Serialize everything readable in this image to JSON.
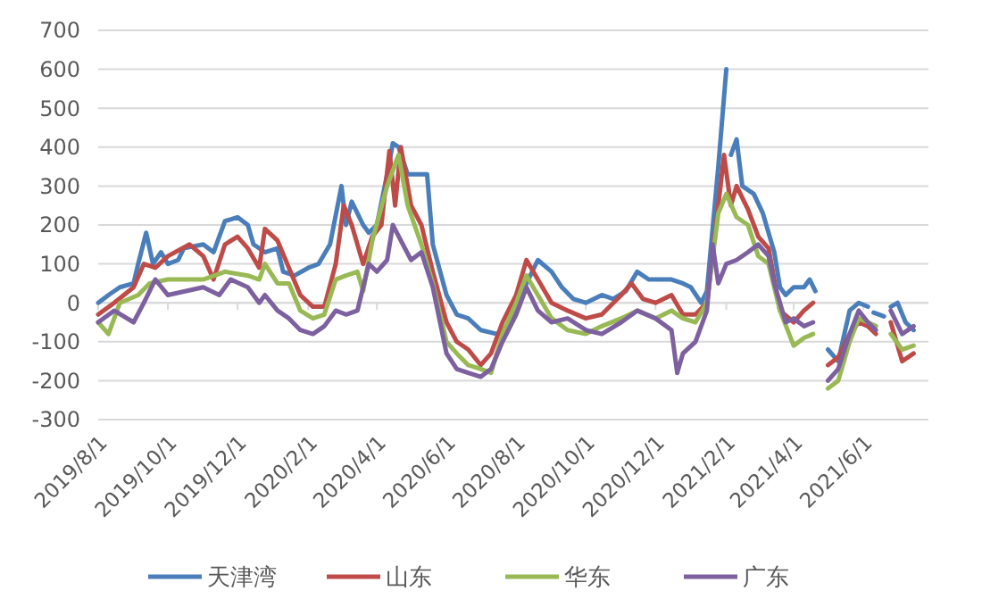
{
  "chart_data": {
    "type": "line",
    "xlim": [
      "2019-08-01",
      "2021-07-28"
    ],
    "ylim": [
      -300,
      700
    ],
    "yticks": [
      -300,
      -200,
      -100,
      0,
      100,
      200,
      300,
      400,
      500,
      600,
      700
    ],
    "xticks": [
      {
        "value": "2019-08-01",
        "label": "2019/8/1"
      },
      {
        "value": "2019-10-01",
        "label": "2019/10/1"
      },
      {
        "value": "2019-12-01",
        "label": "2019/12/1"
      },
      {
        "value": "2020-02-01",
        "label": "2020/2/1"
      },
      {
        "value": "2020-04-01",
        "label": "2020/4/1"
      },
      {
        "value": "2020-06-01",
        "label": "2020/6/1"
      },
      {
        "value": "2020-08-01",
        "label": "2020/8/1"
      },
      {
        "value": "2020-10-01",
        "label": "2020/10/1"
      },
      {
        "value": "2020-12-01",
        "label": "2020/12/1"
      },
      {
        "value": "2021-02-01",
        "label": "2021/2/1"
      },
      {
        "value": "2021-04-01",
        "label": "2021/4/1"
      },
      {
        "value": "2021-06-01",
        "label": "2021/6/1"
      }
    ],
    "grid": "y",
    "legend": "bottom",
    "marker": "none",
    "line_style": "solid",
    "series": [
      {
        "name": "天津湾",
        "color": "#4a7ebb",
        "x": [
          "2019-08-01",
          "2019-08-10",
          "2019-08-20",
          "2019-09-01",
          "2019-09-05",
          "2019-09-12",
          "2019-09-18",
          "2019-09-25",
          "2019-10-01",
          "2019-10-10",
          "2019-10-15",
          "2019-11-01",
          "2019-11-10",
          "2019-11-20",
          "2019-12-01",
          "2019-12-10",
          "2019-12-15",
          "2019-12-25",
          "2020-01-05",
          "2020-01-10",
          "2020-01-20",
          "2020-02-01",
          "2020-02-10",
          "2020-02-20",
          "2020-03-01",
          "2020-03-05",
          "2020-03-10",
          "2020-03-20",
          "2020-03-25",
          "2020-04-01",
          "2020-04-10",
          "2020-04-15",
          "2020-04-20",
          "2020-04-28",
          "2020-05-05",
          "2020-05-15",
          "2020-05-20",
          "2020-06-01",
          "2020-06-10",
          "2020-06-20",
          "2020-07-01",
          "2020-07-15",
          "2020-07-25",
          "2020-08-01",
          "2020-08-10",
          "2020-08-20",
          "2020-09-01",
          "2020-09-10",
          "2020-09-20",
          "2020-10-01",
          "2020-10-15",
          "2020-10-25",
          "2020-11-05",
          "2020-11-15",
          "2020-11-25",
          "2020-12-05",
          "2020-12-15",
          "2020-12-25",
          "2021-01-01",
          "2021-01-10",
          "2021-01-15",
          "2021-01-25",
          "2021-02-01",
          "2021-02-03",
          "2021-02-05",
          "2021-02-10",
          "2021-02-15",
          "2021-02-25",
          "2021-03-05",
          "2021-03-15",
          "2021-03-20",
          "2021-03-25",
          "2021-04-01",
          "2021-04-10",
          "2021-04-15",
          "2021-04-20",
          "2021-04-25",
          "2021-05-01",
          "2021-05-10",
          "2021-05-20",
          "2021-05-28",
          "2021-06-05",
          "2021-06-08",
          "2021-06-10",
          "2021-06-19",
          "2021-06-22",
          "2021-06-25",
          "2021-07-01",
          "2021-07-08",
          "2021-07-15"
        ],
        "values": [
          0,
          20,
          40,
          50,
          100,
          180,
          100,
          130,
          100,
          110,
          140,
          150,
          130,
          210,
          220,
          200,
          150,
          130,
          140,
          80,
          70,
          90,
          100,
          150,
          300,
          200,
          260,
          200,
          180,
          200,
          330,
          410,
          400,
          330,
          330,
          330,
          150,
          20,
          -30,
          -40,
          -70,
          -80,
          -60,
          -20,
          50,
          110,
          80,
          40,
          10,
          0,
          20,
          10,
          30,
          80,
          60,
          60,
          60,
          50,
          40,
          0,
          30,
          350,
          600,
          null,
          380,
          420,
          300,
          280,
          230,
          130,
          40,
          20,
          40,
          40,
          60,
          30,
          null,
          -120,
          -150,
          -20,
          0,
          -10,
          null,
          -25,
          -35,
          null,
          -10,
          0,
          -50,
          -70
        ]
      },
      {
        "name": "山东",
        "color": "#be4b48",
        "x": [
          "2019-08-01",
          "2019-08-15",
          "2019-09-01",
          "2019-09-10",
          "2019-09-20",
          "2019-10-01",
          "2019-10-20",
          "2019-11-01",
          "2019-11-10",
          "2019-11-20",
          "2019-12-01",
          "2019-12-10",
          "2019-12-20",
          "2019-12-25",
          "2020-01-05",
          "2020-01-15",
          "2020-01-25",
          "2020-02-05",
          "2020-02-15",
          "2020-02-25",
          "2020-03-03",
          "2020-03-10",
          "2020-03-20",
          "2020-03-28",
          "2020-04-05",
          "2020-04-12",
          "2020-04-17",
          "2020-04-22",
          "2020-05-01",
          "2020-05-10",
          "2020-05-20",
          "2020-06-01",
          "2020-06-10",
          "2020-06-20",
          "2020-07-01",
          "2020-07-10",
          "2020-07-20",
          "2020-08-01",
          "2020-08-10",
          "2020-08-20",
          "2020-09-01",
          "2020-09-15",
          "2020-10-01",
          "2020-10-15",
          "2020-11-01",
          "2020-11-10",
          "2020-11-20",
          "2020-12-01",
          "2020-12-15",
          "2020-12-25",
          "2021-01-05",
          "2021-01-15",
          "2021-01-25",
          "2021-01-30",
          "2021-02-05",
          "2021-02-10",
          "2021-02-20",
          "2021-03-01",
          "2021-03-10",
          "2021-03-20",
          "2021-04-01",
          "2021-04-10",
          "2021-04-18",
          "2021-04-25",
          "2021-05-01",
          "2021-05-10",
          "2021-05-20",
          "2021-05-28",
          "2021-06-05",
          "2021-06-12",
          "2021-06-18",
          "2021-06-25",
          "2021-07-05",
          "2021-07-15"
        ],
        "values": [
          -30,
          0,
          40,
          100,
          90,
          120,
          150,
          120,
          60,
          150,
          170,
          140,
          90,
          190,
          160,
          90,
          20,
          -10,
          -10,
          100,
          250,
          200,
          100,
          170,
          200,
          390,
          250,
          400,
          250,
          200,
          80,
          -50,
          -100,
          -120,
          -160,
          -130,
          -50,
          20,
          110,
          60,
          0,
          -20,
          -40,
          -30,
          20,
          50,
          10,
          0,
          20,
          -30,
          -30,
          0,
          250,
          380,
          250,
          300,
          240,
          170,
          140,
          -20,
          -50,
          -20,
          0,
          null,
          -160,
          -140,
          -80,
          -50,
          -60,
          -80,
          null,
          -50,
          -150,
          -130
        ]
      },
      {
        "name": "华东",
        "color": "#98b954",
        "x": [
          "2019-08-01",
          "2019-08-10",
          "2019-08-20",
          "2019-09-05",
          "2019-09-15",
          "2019-10-01",
          "2019-11-01",
          "2019-11-20",
          "2019-12-10",
          "2019-12-20",
          "2019-12-25",
          "2020-01-05",
          "2020-01-15",
          "2020-01-25",
          "2020-02-05",
          "2020-02-15",
          "2020-02-25",
          "2020-03-05",
          "2020-03-15",
          "2020-03-20",
          "2020-03-28",
          "2020-04-10",
          "2020-04-20",
          "2020-04-28",
          "2020-05-10",
          "2020-05-20",
          "2020-06-01",
          "2020-06-10",
          "2020-06-20",
          "2020-07-01",
          "2020-07-10",
          "2020-07-20",
          "2020-08-01",
          "2020-08-10",
          "2020-08-20",
          "2020-09-01",
          "2020-09-15",
          "2020-10-01",
          "2020-10-15",
          "2020-11-01",
          "2020-11-15",
          "2020-12-01",
          "2020-12-15",
          "2020-12-25",
          "2021-01-05",
          "2021-01-15",
          "2021-01-25",
          "2021-02-01",
          "2021-02-10",
          "2021-02-20",
          "2021-03-01",
          "2021-03-10",
          "2021-03-20",
          "2021-04-01",
          "2021-04-10",
          "2021-04-18",
          "2021-04-25",
          "2021-05-01",
          "2021-05-10",
          "2021-05-20",
          "2021-05-28",
          "2021-06-05",
          "2021-06-12",
          "2021-06-18",
          "2021-06-25",
          "2021-07-05",
          "2021-07-15"
        ],
        "values": [
          -50,
          -80,
          0,
          20,
          50,
          60,
          60,
          80,
          70,
          60,
          100,
          50,
          50,
          -20,
          -40,
          -30,
          60,
          70,
          80,
          30,
          160,
          300,
          380,
          250,
          150,
          50,
          -100,
          -130,
          -160,
          -170,
          -180,
          -80,
          0,
          70,
          20,
          -40,
          -70,
          -80,
          -60,
          -40,
          -20,
          -40,
          -20,
          -40,
          -50,
          0,
          230,
          280,
          220,
          200,
          120,
          100,
          -20,
          -110,
          -90,
          -80,
          null,
          -220,
          -200,
          -100,
          -40,
          -50,
          -60,
          null,
          -80,
          -120,
          -110
        ]
      },
      {
        "name": "广东",
        "color": "#7d60a0",
        "x": [
          "2019-08-01",
          "2019-08-15",
          "2019-09-01",
          "2019-09-10",
          "2019-09-20",
          "2019-10-01",
          "2019-11-01",
          "2019-11-15",
          "2019-11-25",
          "2019-12-10",
          "2019-12-20",
          "2019-12-25",
          "2020-01-05",
          "2020-01-15",
          "2020-01-25",
          "2020-02-05",
          "2020-02-15",
          "2020-02-25",
          "2020-03-05",
          "2020-03-15",
          "2020-03-25",
          "2020-04-01",
          "2020-04-10",
          "2020-04-15",
          "2020-04-22",
          "2020-05-01",
          "2020-05-10",
          "2020-05-20",
          "2020-06-01",
          "2020-06-10",
          "2020-06-20",
          "2020-07-01",
          "2020-07-10",
          "2020-07-20",
          "2020-08-01",
          "2020-08-10",
          "2020-08-20",
          "2020-09-01",
          "2020-09-15",
          "2020-10-01",
          "2020-10-15",
          "2020-11-01",
          "2020-11-15",
          "2020-12-01",
          "2020-12-15",
          "2020-12-20",
          "2020-12-25",
          "2021-01-05",
          "2021-01-15",
          "2021-01-20",
          "2021-01-25",
          "2021-02-01",
          "2021-02-10",
          "2021-02-20",
          "2021-03-01",
          "2021-03-10",
          "2021-03-15",
          "2021-03-25",
          "2021-04-01",
          "2021-04-10",
          "2021-04-18",
          "2021-04-25",
          "2021-05-01",
          "2021-05-10",
          "2021-05-20",
          "2021-05-28",
          "2021-06-05",
          "2021-06-12",
          "2021-06-18",
          "2021-06-25",
          "2021-07-05",
          "2021-07-15"
        ],
        "values": [
          -50,
          -20,
          -50,
          0,
          60,
          20,
          40,
          20,
          60,
          40,
          0,
          20,
          -20,
          -40,
          -70,
          -80,
          -60,
          -20,
          -30,
          -20,
          100,
          80,
          110,
          200,
          160,
          110,
          130,
          40,
          -130,
          -170,
          -180,
          -190,
          -170,
          -100,
          -30,
          40,
          -20,
          -50,
          -40,
          -70,
          -80,
          -50,
          -20,
          -40,
          -70,
          -180,
          -130,
          -100,
          -20,
          150,
          50,
          100,
          110,
          130,
          150,
          120,
          50,
          -50,
          -40,
          -60,
          -50,
          null,
          -200,
          -170,
          -80,
          -20,
          -50,
          -70,
          null,
          -20,
          -80,
          -60
        ]
      }
    ]
  }
}
